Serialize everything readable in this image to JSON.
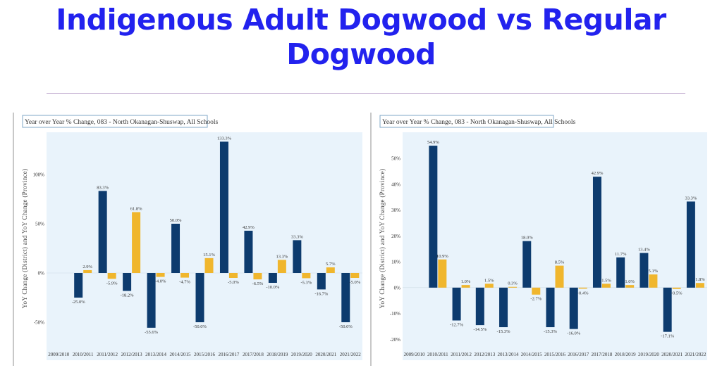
{
  "page": {
    "title_line1": "Indigenous Adult Dogwood vs Regular",
    "title_line2": "Dogwood"
  },
  "colors": {
    "title": "#2222ee",
    "district": "#0d3b6e",
    "province": "#f0b62d",
    "plot_bg": "#e9f3fb"
  },
  "chart_data": [
    {
      "type": "bar",
      "title": "Year over Year % Change, 083 - North Okanagan-Shuswap, All Schools",
      "ylabel": "YoY Change (District) and YoY Change (Province)",
      "xlabel": "",
      "categories": [
        "2009/2010",
        "2010/2011",
        "2011/2012",
        "2012/2013",
        "2013/2014",
        "2014/2015",
        "2015/2016",
        "2016/2017",
        "2017/2018",
        "2018/2019",
        "2019/2020",
        "2020/2021",
        "2021/2022"
      ],
      "series": [
        {
          "values": [
            null,
            -25.0,
            83.3,
            -18.2,
            -55.6,
            50.0,
            -50.0,
            133.3,
            42.9,
            -10.0,
            33.3,
            -16.7,
            -50.0
          ],
          "labels": [
            "",
            "-25.0%",
            "83.3%",
            "-18.2%",
            "-55.6%",
            "50.0%",
            "-50.0%",
            "133.3%",
            "42.9%",
            "-10.0%",
            "33.3%",
            "-16.7%",
            "-50.0%"
          ]
        },
        {
          "values": [
            null,
            2.9,
            -5.9,
            61.8,
            -4.0,
            -4.7,
            15.1,
            -5.0,
            -6.5,
            13.3,
            -5.3,
            5.7,
            -5.0
          ],
          "labels": [
            "",
            "2.9%",
            "-5.9%",
            "61.8%",
            "-4.0%",
            "-4.7%",
            "15.1%",
            "-5.0%",
            "-6.5%",
            "13.3%",
            "-5.3%",
            "5.7%",
            "-5.0%"
          ]
        }
      ],
      "yticks": [
        100,
        50,
        0,
        -50
      ],
      "ytick_labels": [
        "100%",
        "50%",
        "0%",
        "-50%"
      ],
      "ylim": [
        -70,
        140
      ],
      "grid": false,
      "legend": "none"
    },
    {
      "type": "bar",
      "title": "Year over Year % Change, 083 - North Okanagan-Shuswap, All Schools",
      "ylabel": "YoY Change (District) and YoY Change (Province)",
      "xlabel": "",
      "categories": [
        "2009/2010",
        "2010/2011",
        "2011/2012",
        "2012/2013",
        "2013/2014",
        "2014/2015",
        "2015/2016",
        "2016/2017",
        "2017/2018",
        "2018/2019",
        "2019/2020",
        "2020/2021",
        "2021/2022"
      ],
      "series": [
        {
          "values": [
            null,
            54.9,
            -12.7,
            -14.5,
            -15.3,
            18.0,
            -15.3,
            -16.0,
            42.9,
            11.7,
            13.4,
            -17.1,
            33.3
          ],
          "labels": [
            "",
            "54.9%",
            "-12.7%",
            "-14.5%",
            "-15.3%",
            "18.0%",
            "-15.3%",
            "-16.0%",
            "42.9%",
            "11.7%",
            "13.4%",
            "-17.1%",
            "33.3%"
          ]
        },
        {
          "values": [
            null,
            10.9,
            1.0,
            1.5,
            0.3,
            -2.7,
            8.5,
            -0.4,
            1.5,
            1.0,
            5.1,
            -0.5,
            1.8
          ],
          "labels": [
            "",
            "10.9%",
            "1.0%",
            "1.5%",
            "0.3%",
            "-2.7%",
            "8.5%",
            "-0.4%",
            "1.5%",
            "1.0%",
            "5.1%",
            "-0.5%",
            "1.8%"
          ]
        }
      ],
      "yticks": [
        50,
        40,
        30,
        20,
        10,
        0,
        -10,
        -20
      ],
      "ytick_labels": [
        "50%",
        "40%",
        "30%",
        "20%",
        "10%",
        "0%",
        "-10%",
        "-20%"
      ],
      "ylim": [
        -21,
        59
      ],
      "grid": false,
      "legend": "none"
    }
  ]
}
